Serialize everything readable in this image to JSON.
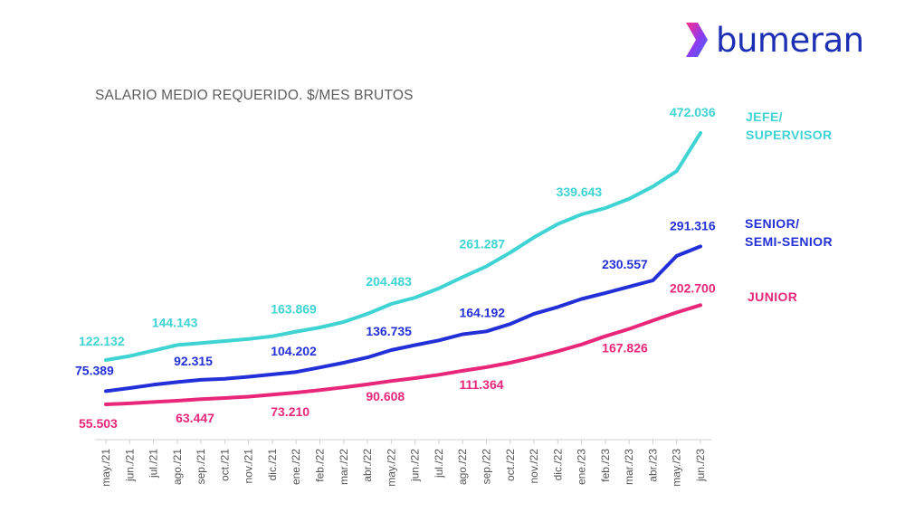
{
  "brand": {
    "logo_text": "bumeran",
    "logo_mark": "chevron-icon",
    "colors": {
      "logo_text": "#1d2fb3",
      "logo_gradient_start": "#ff2d8b",
      "logo_gradient_end": "#3b6fff"
    }
  },
  "chart_data": {
    "type": "line",
    "title": "SALARIO MEDIO REQUERIDO. $/MES BRUTOS",
    "xlabel": "",
    "ylabel": "",
    "grid": false,
    "legend": "right-end-of-lines",
    "categories": [
      "may./21",
      "jun./21",
      "jul./21",
      "ago./21",
      "sep./21",
      "oct./21",
      "nov./21",
      "dic./21",
      "ene./22",
      "feb./22",
      "mar./22",
      "abr./22",
      "may./22",
      "jun./22",
      "jul./22",
      "ago./22",
      "sep./22",
      "oct./22",
      "nov./22",
      "dic./22",
      "ene./23",
      "feb./23",
      "mar./23",
      "abr./23",
      "may./23",
      "jun./23"
    ],
    "ylim": [
      0,
      480000
    ],
    "series": [
      {
        "name": "JEFE/\nSUPERVISOR",
        "name_lines": [
          "JEFE/",
          "SUPERVISOR"
        ],
        "color": "#3fd3d3",
        "values": [
          122132,
          128000,
          136000,
          144143,
          147000,
          150000,
          153000,
          157000,
          163869,
          170000,
          178000,
          190000,
          204483,
          214000,
          228000,
          245000,
          261287,
          282000,
          305000,
          325000,
          339643,
          350000,
          365000,
          385000,
          410000,
          472036
        ],
        "labels": [
          {
            "index": 0,
            "text": "122.132"
          },
          {
            "index": 3,
            "text": "144.143"
          },
          {
            "index": 8,
            "text": "163.869"
          },
          {
            "index": 12,
            "text": "204.483"
          },
          {
            "index": 16,
            "text": "261.287"
          },
          {
            "index": 20,
            "text": "339.643"
          },
          {
            "index": 25,
            "text": "472.036"
          }
        ]
      },
      {
        "name": "SENIOR/\nSEMI-SENIOR",
        "name_lines": [
          "SENIOR/",
          "SEMI-SENIOR"
        ],
        "color": "#2330d8",
        "values": [
          75389,
          80000,
          85000,
          89000,
          92315,
          94000,
          97000,
          100500,
          104202,
          111000,
          118000,
          126000,
          136735,
          144000,
          151000,
          160000,
          164192,
          175000,
          190000,
          200000,
          212000,
          221000,
          230557,
          240000,
          277000,
          291316
        ],
        "labels": [
          {
            "index": 0,
            "text": "75.389"
          },
          {
            "index": 4,
            "text": "92.315"
          },
          {
            "index": 8,
            "text": "104.202"
          },
          {
            "index": 12,
            "text": "136.735"
          },
          {
            "index": 16,
            "text": "164.192"
          },
          {
            "index": 22,
            "text": "230.557"
          },
          {
            "index": 25,
            "text": "291.316"
          }
        ]
      },
      {
        "name": "JUNIOR",
        "name_lines": [
          "JUNIOR"
        ],
        "color": "#e8267a",
        "values": [
          55503,
          57000,
          59000,
          61000,
          63447,
          65000,
          67000,
          70000,
          73210,
          77000,
          81000,
          85500,
          90608,
          95000,
          100000,
          106000,
          111364,
          118000,
          126000,
          135000,
          145000,
          157000,
          167826,
          180000,
          192000,
          202700
        ],
        "labels": [
          {
            "index": 0,
            "text": "55.503"
          },
          {
            "index": 4,
            "text": "63.447"
          },
          {
            "index": 8,
            "text": "73.210"
          },
          {
            "index": 12,
            "text": "90.608"
          },
          {
            "index": 16,
            "text": "111.364"
          },
          {
            "index": 22,
            "text": "167.826"
          },
          {
            "index": 25,
            "text": "202.700"
          }
        ]
      }
    ]
  }
}
